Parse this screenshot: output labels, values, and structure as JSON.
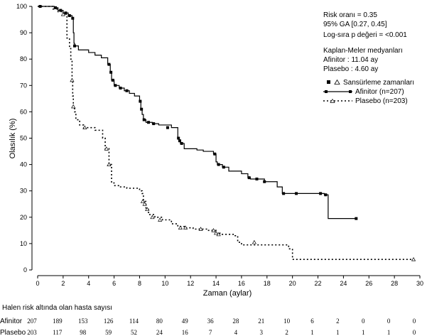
{
  "chart_data": {
    "type": "line",
    "ylabel": "Olasılık (%)",
    "xlabel": "Zaman (aylar)",
    "xlim": [
      0,
      30
    ],
    "ylim": [
      0,
      100
    ],
    "xticks": [
      0,
      2,
      4,
      6,
      8,
      10,
      12,
      14,
      16,
      18,
      20,
      22,
      24,
      26,
      28,
      30
    ],
    "yticks": [
      0,
      10,
      20,
      30,
      40,
      50,
      60,
      70,
      80,
      90,
      100
    ],
    "stats": {
      "hazard": "Risk oranı = 0.35",
      "ci": "95% GA [0.27, 0.45]",
      "logrank": "Log-sıra p değeri = <0.001",
      "km_title": "Kaplan-Meler medyanları",
      "median_afinitor": "Afinitor : 11.04 ay",
      "median_plasebo": "Plasebo :  4.60 ay"
    },
    "legend": {
      "censor_label": "Sansürleme zamanları",
      "afinitor_label": "Afinitor (n=207)",
      "plasebo_label": "Plasebo (n=203)"
    },
    "series": [
      {
        "name": "Afinitor",
        "style": "solid",
        "marker": "square",
        "steps": [
          [
            0,
            100
          ],
          [
            1.3,
            99.5
          ],
          [
            1.6,
            98.5
          ],
          [
            2.0,
            97.5
          ],
          [
            2.4,
            96.5
          ],
          [
            2.7,
            95.5
          ],
          [
            2.8,
            90
          ],
          [
            2.85,
            86
          ],
          [
            2.9,
            85
          ],
          [
            3.2,
            83.5
          ],
          [
            4.0,
            82.5
          ],
          [
            4.5,
            81.5
          ],
          [
            5.0,
            80.5
          ],
          [
            5.5,
            78
          ],
          [
            5.7,
            75
          ],
          [
            5.8,
            72
          ],
          [
            6.0,
            70
          ],
          [
            6.4,
            69
          ],
          [
            6.8,
            68
          ],
          [
            7.2,
            67
          ],
          [
            7.6,
            66
          ],
          [
            8.0,
            64
          ],
          [
            8.1,
            61
          ],
          [
            8.2,
            59
          ],
          [
            8.3,
            57
          ],
          [
            8.5,
            56
          ],
          [
            9.0,
            55.5
          ],
          [
            9.5,
            55
          ],
          [
            10.5,
            54
          ],
          [
            11.0,
            50
          ],
          [
            11.1,
            49
          ],
          [
            11.2,
            48
          ],
          [
            11.5,
            46
          ],
          [
            12.5,
            45.5
          ],
          [
            13.0,
            45
          ],
          [
            13.8,
            44
          ],
          [
            14.0,
            41
          ],
          [
            14.1,
            40
          ],
          [
            14.5,
            39
          ],
          [
            15.0,
            37.5
          ],
          [
            16.0,
            36.5
          ],
          [
            16.5,
            35
          ],
          [
            16.7,
            34.5
          ],
          [
            17.8,
            33.5
          ],
          [
            18.8,
            31.5
          ],
          [
            19.2,
            29
          ],
          [
            20.0,
            29
          ],
          [
            22.0,
            29
          ],
          [
            22.5,
            28.5
          ],
          [
            22.8,
            19.5
          ],
          [
            25.0,
            19.5
          ]
        ],
        "censor": [
          [
            0.2,
            100
          ],
          [
            1.4,
            99.5
          ],
          [
            1.8,
            98.5
          ],
          [
            2.2,
            97.5
          ],
          [
            2.5,
            96.5
          ],
          [
            2.75,
            95.5
          ],
          [
            2.9,
            85
          ],
          [
            5.6,
            78
          ],
          [
            5.75,
            75
          ],
          [
            5.9,
            72
          ],
          [
            6.1,
            70
          ],
          [
            6.5,
            69
          ],
          [
            7.0,
            68
          ],
          [
            8.05,
            64
          ],
          [
            8.15,
            61
          ],
          [
            8.35,
            57
          ],
          [
            8.7,
            56
          ],
          [
            9.1,
            55.5
          ],
          [
            10.2,
            54
          ],
          [
            11.05,
            50
          ],
          [
            11.15,
            49
          ],
          [
            11.3,
            48
          ],
          [
            13.9,
            44
          ],
          [
            14.2,
            40
          ],
          [
            14.6,
            39
          ],
          [
            16.6,
            35
          ],
          [
            17.2,
            34.5
          ],
          [
            17.8,
            33.5
          ],
          [
            19.3,
            29
          ],
          [
            20.3,
            29
          ],
          [
            22.2,
            29
          ],
          [
            22.6,
            28.5
          ],
          [
            25.0,
            19.5
          ]
        ]
      },
      {
        "name": "Plasebo",
        "style": "dotted",
        "marker": "triangle",
        "steps": [
          [
            0,
            100
          ],
          [
            1.2,
            99
          ],
          [
            1.6,
            98
          ],
          [
            2.0,
            97
          ],
          [
            2.3,
            88
          ],
          [
            2.5,
            84
          ],
          [
            2.6,
            80
          ],
          [
            2.7,
            72
          ],
          [
            2.75,
            66
          ],
          [
            2.8,
            62
          ],
          [
            2.9,
            60
          ],
          [
            3.0,
            57
          ],
          [
            3.3,
            55
          ],
          [
            3.6,
            54
          ],
          [
            4.5,
            53
          ],
          [
            5.1,
            50
          ],
          [
            5.3,
            46
          ],
          [
            5.6,
            40
          ],
          [
            5.8,
            33
          ],
          [
            6.0,
            32
          ],
          [
            6.5,
            31.5
          ],
          [
            7.0,
            31
          ],
          [
            8.0,
            30
          ],
          [
            8.2,
            29
          ],
          [
            8.3,
            26
          ],
          [
            8.5,
            23
          ],
          [
            8.7,
            21
          ],
          [
            9.2,
            20
          ],
          [
            9.8,
            19
          ],
          [
            10.5,
            17.5
          ],
          [
            11.0,
            16.5
          ],
          [
            11.5,
            16
          ],
          [
            12.2,
            15.5
          ],
          [
            13.3,
            15
          ],
          [
            14.0,
            14
          ],
          [
            14.3,
            13.5
          ],
          [
            15.5,
            13
          ],
          [
            15.7,
            10.5
          ],
          [
            16.0,
            9.5
          ],
          [
            19.5,
            9.5
          ],
          [
            19.7,
            8
          ],
          [
            20.0,
            4
          ],
          [
            29.5,
            4
          ]
        ],
        "censor": [
          [
            2.0,
            97
          ],
          [
            2.7,
            72
          ],
          [
            2.8,
            62
          ],
          [
            3.7,
            54
          ],
          [
            5.4,
            46
          ],
          [
            5.6,
            40
          ],
          [
            8.25,
            26
          ],
          [
            8.4,
            25
          ],
          [
            8.6,
            23
          ],
          [
            9.0,
            20
          ],
          [
            9.6,
            19
          ],
          [
            11.2,
            16
          ],
          [
            11.6,
            16
          ],
          [
            12.8,
            15.5
          ],
          [
            13.8,
            15
          ],
          [
            14.0,
            14
          ],
          [
            14.2,
            13.5
          ],
          [
            17.0,
            10.5
          ],
          [
            29.5,
            4
          ]
        ]
      }
    ]
  },
  "risk_table": {
    "title": "Halen risk altında olan hasta sayısı",
    "rows": [
      {
        "label": "Afinitor",
        "values": [
          "207",
          "189",
          "153",
          "126",
          "114",
          "80",
          "49",
          "36",
          "28",
          "21",
          "10",
          "6",
          "2",
          "0",
          "0",
          "0"
        ]
      },
      {
        "label": "Plasebo",
        "values": [
          "203",
          "117",
          "98",
          "59",
          "52",
          "24",
          "16",
          "7",
          "4",
          "3",
          "2",
          "1",
          "1",
          "1",
          "1",
          "0"
        ]
      }
    ]
  }
}
